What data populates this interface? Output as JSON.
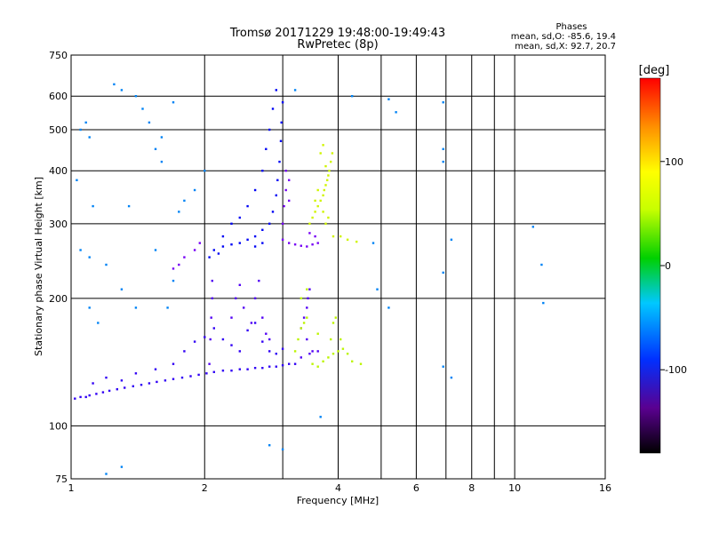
{
  "chart_data": {
    "type": "scatter",
    "title": "Tromsø 20171229 19:48:00-19:49:43",
    "subtitle": "RwPretec (8p)",
    "xlabel": "Frequency [MHz]",
    "ylabel": "Stationary phase Virtual Height [km]",
    "x_scale": "log",
    "y_scale": "log",
    "xlim": [
      1,
      16
    ],
    "ylim": [
      75,
      750
    ],
    "x_ticks": [
      1,
      2,
      4,
      6,
      8,
      10,
      16
    ],
    "x_grid": [
      1,
      2,
      3,
      4,
      5,
      6,
      7,
      8,
      9,
      10,
      16
    ],
    "y_ticks": [
      75,
      100,
      200,
      300,
      400,
      500,
      600,
      750
    ],
    "grid": true,
    "stats": {
      "heading": "Phases",
      "line_o": "mean, sd,O: -85.6, 19.4",
      "line_x": "mean, sd,X:  92.7, 20.7"
    },
    "colorbar": {
      "label": "[deg]",
      "range": [
        -180,
        180
      ],
      "ticks": [
        100,
        0,
        -100
      ]
    },
    "series": [
      {
        "component": "o-trace lower",
        "phase": -110,
        "points": [
          [
            1.02,
            116
          ],
          [
            1.05,
            117
          ],
          [
            1.08,
            117
          ],
          [
            1.1,
            118
          ],
          [
            1.14,
            119
          ],
          [
            1.18,
            120
          ],
          [
            1.22,
            121
          ],
          [
            1.27,
            122
          ],
          [
            1.32,
            123
          ],
          [
            1.38,
            124
          ],
          [
            1.44,
            125
          ],
          [
            1.5,
            126
          ],
          [
            1.56,
            127
          ],
          [
            1.63,
            128
          ],
          [
            1.7,
            129
          ],
          [
            1.78,
            130
          ],
          [
            1.86,
            131
          ],
          [
            1.94,
            132
          ],
          [
            2.02,
            133
          ],
          [
            2.1,
            134
          ],
          [
            2.2,
            135
          ],
          [
            2.3,
            135
          ],
          [
            2.4,
            136
          ],
          [
            2.5,
            136
          ],
          [
            2.6,
            137
          ],
          [
            2.7,
            137
          ],
          [
            2.8,
            138
          ],
          [
            2.9,
            138
          ],
          [
            3.0,
            139
          ],
          [
            3.1,
            140
          ],
          [
            3.2,
            140
          ],
          [
            1.12,
            126
          ],
          [
            1.2,
            130
          ],
          [
            1.3,
            128
          ],
          [
            1.4,
            133
          ],
          [
            1.55,
            136
          ],
          [
            1.7,
            140
          ],
          [
            1.8,
            150
          ],
          [
            1.9,
            158
          ],
          [
            2.0,
            162
          ],
          [
            2.1,
            170
          ],
          [
            2.2,
            160
          ],
          [
            2.3,
            155
          ],
          [
            2.4,
            150
          ],
          [
            2.5,
            168
          ],
          [
            2.6,
            175
          ],
          [
            2.7,
            158
          ],
          [
            2.8,
            150
          ],
          [
            2.9,
            148
          ],
          [
            3.0,
            152
          ]
        ]
      },
      {
        "component": "o-trace lower column",
        "phase": -120,
        "points": [
          [
            2.05,
            140
          ],
          [
            2.06,
            160
          ],
          [
            2.07,
            180
          ],
          [
            2.08,
            200
          ],
          [
            2.08,
            220
          ],
          [
            2.3,
            180
          ],
          [
            2.35,
            200
          ],
          [
            2.4,
            215
          ],
          [
            2.45,
            190
          ],
          [
            2.55,
            175
          ],
          [
            2.6,
            200
          ],
          [
            2.65,
            220
          ],
          [
            2.7,
            180
          ],
          [
            2.75,
            165
          ],
          [
            2.8,
            160
          ],
          [
            3.3,
            170
          ],
          [
            3.35,
            180
          ],
          [
            3.4,
            190
          ],
          [
            3.42,
            200
          ],
          [
            3.45,
            210
          ],
          [
            3.4,
            160
          ],
          [
            3.5,
            150
          ],
          [
            3.45,
            148
          ],
          [
            3.6,
            150
          ],
          [
            3.3,
            145
          ]
        ]
      },
      {
        "component": "o-trace upper",
        "phase": -95,
        "points": [
          [
            2.05,
            250
          ],
          [
            2.1,
            260
          ],
          [
            2.2,
            265
          ],
          [
            2.3,
            268
          ],
          [
            2.4,
            270
          ],
          [
            2.5,
            275
          ],
          [
            2.6,
            280
          ],
          [
            2.7,
            290
          ],
          [
            2.8,
            300
          ],
          [
            2.85,
            320
          ],
          [
            2.9,
            350
          ],
          [
            2.92,
            380
          ],
          [
            2.95,
            420
          ],
          [
            2.97,
            470
          ],
          [
            2.98,
            520
          ],
          [
            3.0,
            580
          ],
          [
            2.3,
            300
          ],
          [
            2.4,
            310
          ],
          [
            2.5,
            330
          ],
          [
            2.6,
            360
          ],
          [
            2.7,
            400
          ],
          [
            2.75,
            450
          ],
          [
            2.8,
            500
          ],
          [
            2.85,
            560
          ],
          [
            2.9,
            620
          ],
          [
            2.2,
            280
          ],
          [
            2.15,
            255
          ],
          [
            2.6,
            265
          ],
          [
            2.7,
            270
          ]
        ]
      },
      {
        "component": "o-trace upper purple",
        "phase": -130,
        "points": [
          [
            3.0,
            300
          ],
          [
            3.02,
            330
          ],
          [
            3.05,
            360
          ],
          [
            3.05,
            400
          ],
          [
            3.1,
            380
          ],
          [
            3.1,
            340
          ],
          [
            3.2,
            268
          ],
          [
            3.3,
            266
          ],
          [
            3.4,
            265
          ],
          [
            3.5,
            268
          ],
          [
            3.6,
            270
          ],
          [
            3.1,
            270
          ],
          [
            3.0,
            275
          ],
          [
            3.55,
            280
          ],
          [
            3.45,
            285
          ],
          [
            1.8,
            250
          ],
          [
            1.75,
            240
          ],
          [
            1.7,
            235
          ],
          [
            1.9,
            260
          ],
          [
            1.95,
            270
          ]
        ]
      },
      {
        "component": "x-trace lower",
        "phase": 95,
        "points": [
          [
            3.2,
            150
          ],
          [
            3.25,
            160
          ],
          [
            3.3,
            170
          ],
          [
            3.35,
            175
          ],
          [
            3.4,
            180
          ],
          [
            3.5,
            140
          ],
          [
            3.6,
            138
          ],
          [
            3.7,
            142
          ],
          [
            3.8,
            145
          ],
          [
            3.9,
            148
          ],
          [
            4.0,
            150
          ],
          [
            4.1,
            152
          ],
          [
            4.2,
            148
          ],
          [
            4.3,
            142
          ],
          [
            4.5,
            140
          ],
          [
            3.85,
            160
          ],
          [
            3.9,
            175
          ],
          [
            3.95,
            180
          ],
          [
            3.3,
            200
          ],
          [
            3.4,
            210
          ],
          [
            3.6,
            165
          ],
          [
            4.05,
            160
          ]
        ]
      },
      {
        "component": "x-trace upper",
        "phase": 100,
        "points": [
          [
            3.45,
            300
          ],
          [
            3.5,
            310
          ],
          [
            3.55,
            320
          ],
          [
            3.6,
            330
          ],
          [
            3.65,
            340
          ],
          [
            3.7,
            350
          ],
          [
            3.72,
            360
          ],
          [
            3.75,
            370
          ],
          [
            3.78,
            380
          ],
          [
            3.8,
            390
          ],
          [
            3.82,
            400
          ],
          [
            3.85,
            420
          ],
          [
            3.88,
            440
          ],
          [
            3.6,
            360
          ],
          [
            3.55,
            340
          ],
          [
            3.7,
            320
          ],
          [
            3.75,
            300
          ],
          [
            3.8,
            310
          ],
          [
            3.65,
            440
          ],
          [
            3.7,
            460
          ],
          [
            3.75,
            410
          ],
          [
            3.9,
            280
          ],
          [
            4.05,
            280
          ],
          [
            4.2,
            275
          ],
          [
            4.4,
            272
          ]
        ]
      },
      {
        "component": "scattered",
        "phase": -60,
        "points": [
          [
            1.05,
            500
          ],
          [
            1.08,
            520
          ],
          [
            1.1,
            480
          ],
          [
            1.03,
            380
          ],
          [
            1.12,
            330
          ],
          [
            1.05,
            260
          ],
          [
            1.1,
            250
          ],
          [
            1.2,
            240
          ],
          [
            1.3,
            210
          ],
          [
            1.4,
            190
          ],
          [
            1.35,
            330
          ],
          [
            1.4,
            600
          ],
          [
            1.45,
            560
          ],
          [
            1.5,
            520
          ],
          [
            1.55,
            450
          ],
          [
            1.6,
            420
          ],
          [
            1.7,
            580
          ],
          [
            1.25,
            640
          ],
          [
            1.3,
            620
          ],
          [
            1.6,
            480
          ],
          [
            1.75,
            320
          ],
          [
            1.8,
            340
          ],
          [
            1.9,
            360
          ],
          [
            2.0,
            400
          ],
          [
            1.55,
            260
          ],
          [
            1.7,
            220
          ],
          [
            1.65,
            190
          ],
          [
            4.3,
            600
          ],
          [
            5.2,
            590
          ],
          [
            5.4,
            550
          ],
          [
            6.9,
            580
          ],
          [
            6.9,
            450
          ],
          [
            6.9,
            420
          ],
          [
            6.9,
            230
          ],
          [
            6.9,
            138
          ],
          [
            7.2,
            130
          ],
          [
            11.0,
            295
          ],
          [
            11.5,
            240
          ],
          [
            11.6,
            195
          ],
          [
            3.2,
            620
          ],
          [
            2.8,
            90
          ],
          [
            3.0,
            88
          ],
          [
            3.65,
            105
          ],
          [
            4.9,
            210
          ],
          [
            5.2,
            190
          ],
          [
            1.3,
            80
          ],
          [
            1.2,
            77
          ],
          [
            4.8,
            270
          ],
          [
            7.2,
            275
          ],
          [
            1.1,
            190
          ],
          [
            1.15,
            175
          ]
        ]
      }
    ]
  }
}
